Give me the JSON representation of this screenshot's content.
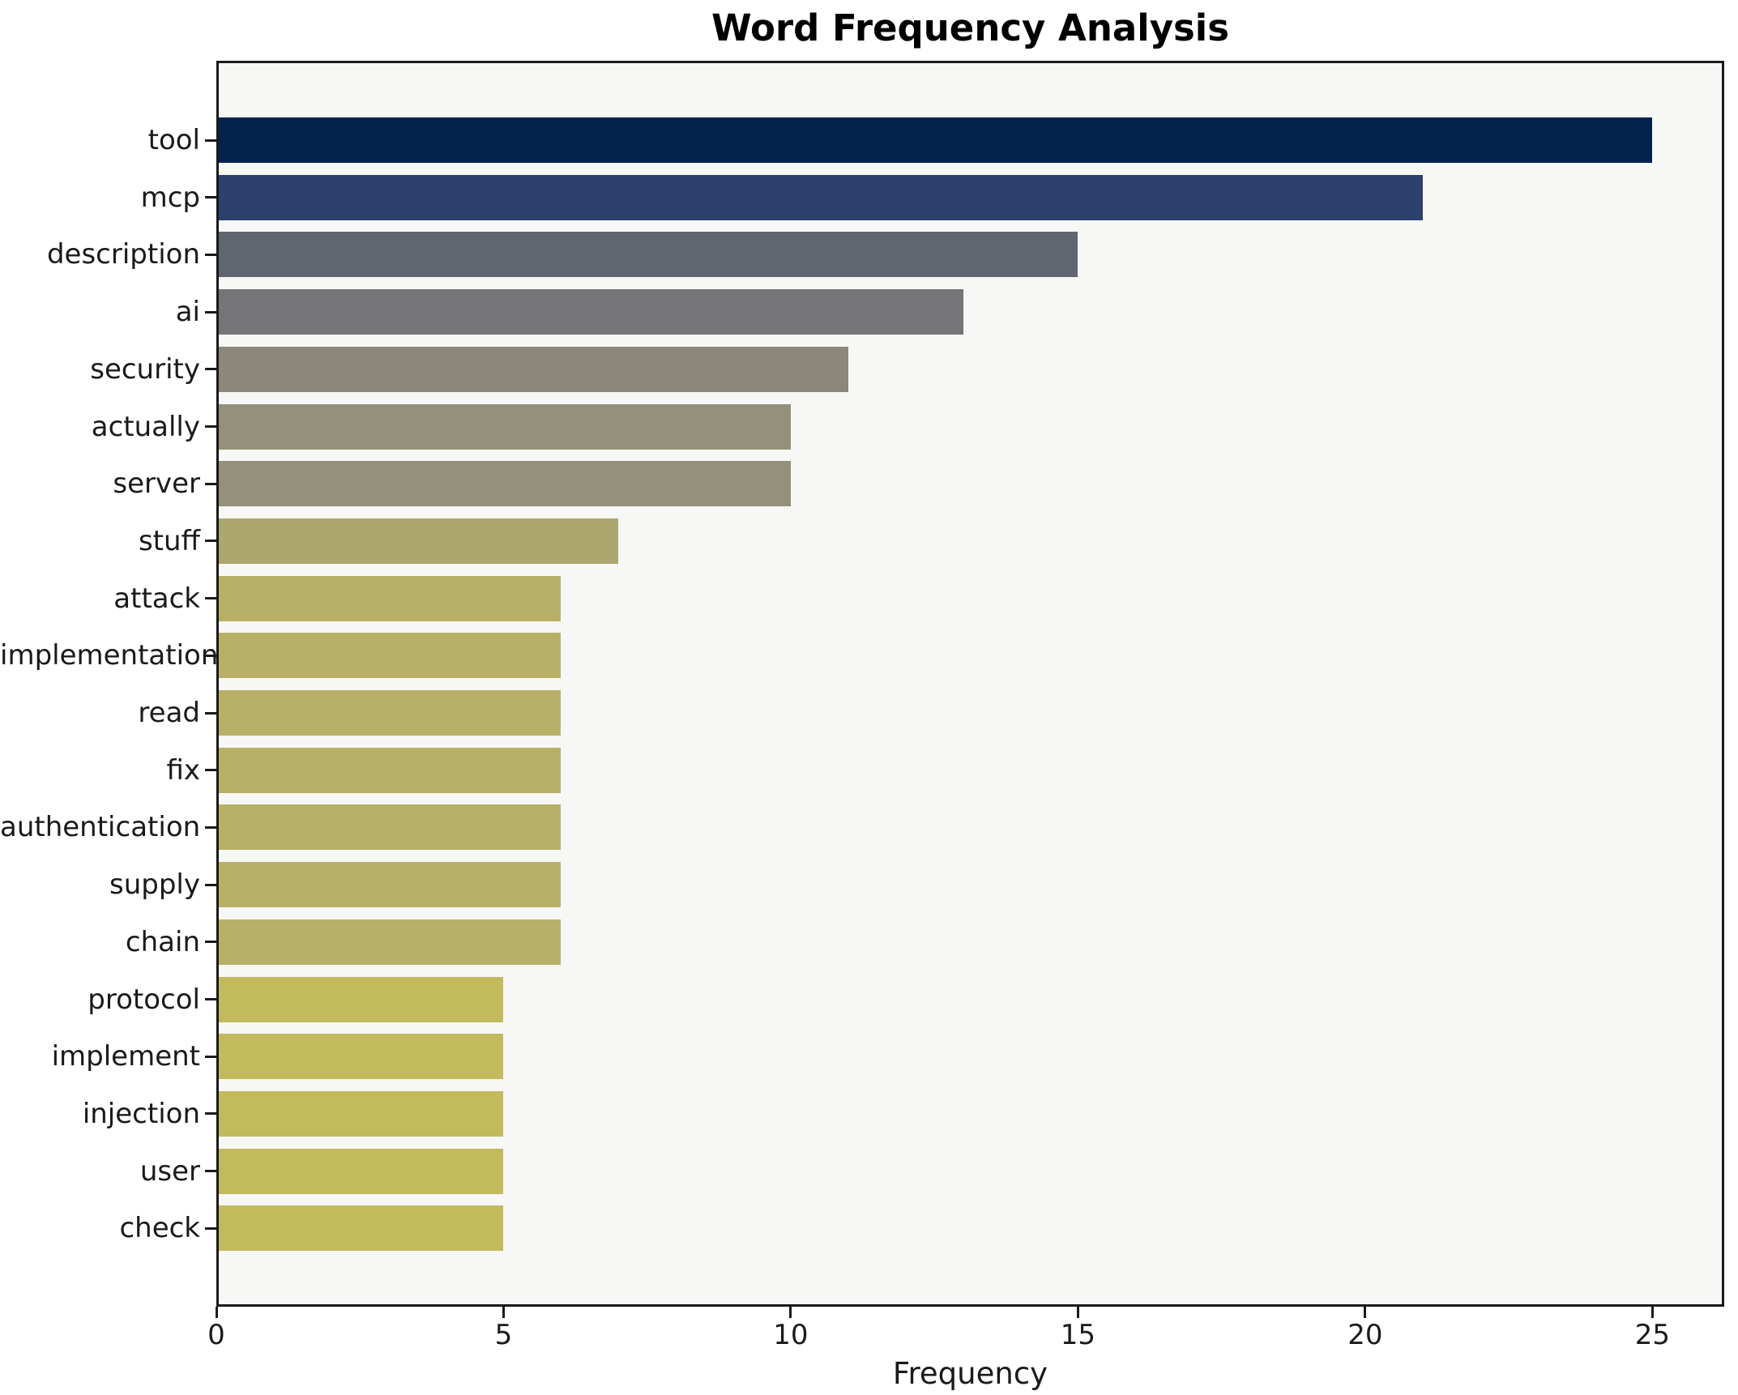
{
  "chart_data": {
    "type": "bar",
    "orientation": "horizontal",
    "title": "Word Frequency Analysis",
    "xlabel": "Frequency",
    "ylabel": "",
    "categories": [
      "tool",
      "mcp",
      "description",
      "ai",
      "security",
      "actually",
      "server",
      "stuff",
      "attack",
      "implementation",
      "read",
      "fix",
      "authentication",
      "supply",
      "chain",
      "protocol",
      "implement",
      "injection",
      "user",
      "check"
    ],
    "values": [
      25,
      21,
      15,
      13,
      11,
      10,
      10,
      7,
      6,
      6,
      6,
      6,
      6,
      6,
      6,
      5,
      5,
      5,
      5,
      5
    ],
    "bar_colors": [
      "#03234e",
      "#2d416e",
      "#616570",
      "#757477",
      "#8b8779",
      "#949079",
      "#949079",
      "#aca76c",
      "#b9b067",
      "#b9b067",
      "#b9b067",
      "#b9b067",
      "#b9b067",
      "#b9b067",
      "#b9b067",
      "#c3b95d",
      "#c3b95d",
      "#c3b95d",
      "#c3b95d",
      "#c3b95d"
    ],
    "x_ticks": [
      0,
      5,
      10,
      15,
      20,
      25
    ],
    "xlim": [
      0,
      26.25
    ],
    "grid": false,
    "legend": false,
    "plot_bg": "#f7f7f5",
    "figure_bg": "#ffffff",
    "spine_color": "#1a1a1a",
    "text_color": "#1a1a1a"
  }
}
